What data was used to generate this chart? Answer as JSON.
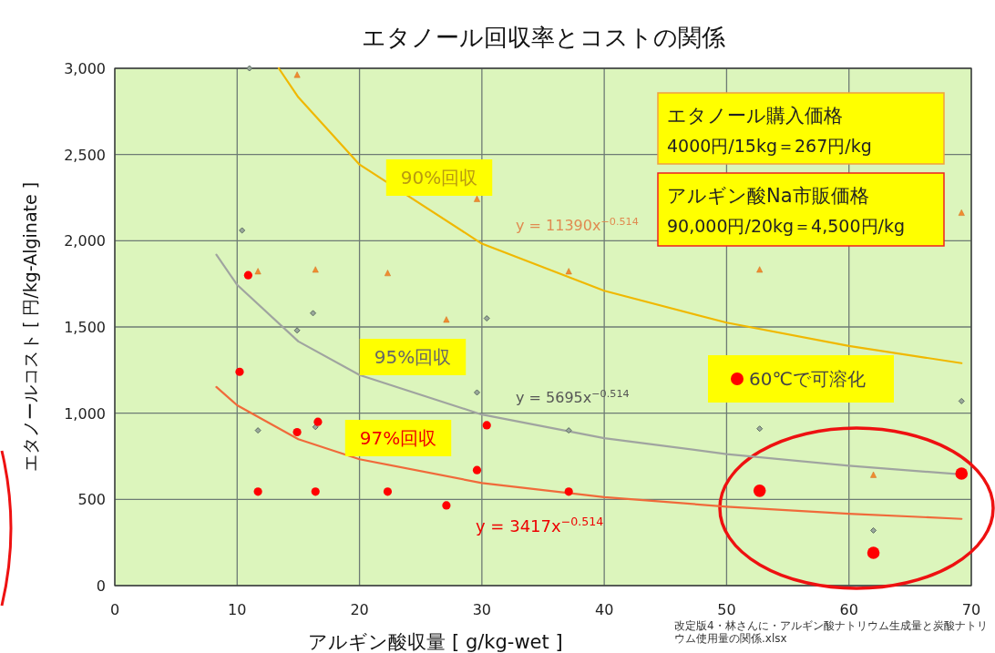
{
  "chart_data": {
    "type": "scatter",
    "title": "エタノール回収率とコストの関係",
    "xlabel": "アルギン酸収量 [ g/kg-wet ]",
    "ylabel": "エタノールコスト [ 円/kg-Alginate ]",
    "xlim": [
      0,
      70
    ],
    "xticks": [
      0,
      10,
      20,
      30,
      40,
      50,
      60,
      70
    ],
    "ylim": [
      0,
      3000
    ],
    "yticks": [
      0,
      500,
      {
        "value": 1000,
        "label": "1,000"
      },
      {
        "value": 1500,
        "label": "1,500"
      },
      {
        "value": 2000,
        "label": "2,000"
      },
      {
        "value": 2500,
        "label": "2,500"
      },
      {
        "value": 3000,
        "label": "3,000"
      }
    ],
    "grid": true,
    "legend": "right",
    "series": [
      {
        "type": "scatter",
        "marker": "triangle",
        "color": "#f08c30",
        "x": [
          14.9,
          11.7,
          16.4,
          22.3,
          27.1,
          29.6,
          37.1,
          52.7,
          62.0,
          69.2
        ],
        "values": [
          2960,
          1820,
          1830,
          1810,
          1540,
          2240,
          1820,
          1830,
          640,
          2160
        ]
      },
      {
        "type": "scatter",
        "marker": "diamond",
        "color": "#5a6a60",
        "x": [
          11.0,
          10.4,
          16.2,
          14.9,
          11.7,
          16.4,
          30.4,
          29.6,
          37.1,
          52.7,
          62.0,
          69.2
        ],
        "values": [
          3000,
          2060,
          1580,
          1480,
          900,
          920,
          1550,
          1120,
          900,
          910,
          320,
          1070
        ]
      },
      {
        "type": "scatter",
        "marker": "circle",
        "color": "#ff0000",
        "x": [
          10.9,
          10.2,
          11.7,
          14.9,
          16.6,
          16.4,
          22.3,
          27.1,
          29.6,
          30.4,
          37.1
        ],
        "values": [
          1800,
          1240,
          545,
          890,
          950,
          545,
          545,
          465,
          670,
          930,
          545
        ]
      },
      {
        "type": "scatter",
        "marker": "circle",
        "name": "60℃で可溶化",
        "color": "#ff0000",
        "x": [
          52.7,
          62.0,
          69.2
        ],
        "values": [
          550,
          190,
          650
        ]
      },
      {
        "type": "line",
        "marker": "none",
        "color": "#f0b800",
        "x": [
          13.4,
          15,
          20,
          30,
          40,
          50,
          60,
          69.2
        ],
        "values": [
          3000,
          2832,
          2442,
          1983,
          1710,
          1525,
          1390,
          1290
        ]
      },
      {
        "type": "line",
        "marker": "none",
        "color": "#a0a4a0",
        "x": [
          8.3,
          10,
          15,
          20,
          30,
          40,
          50,
          60,
          69.2
        ],
        "values": [
          1919,
          1744,
          1416,
          1221,
          992,
          855,
          763,
          695,
          645
        ]
      },
      {
        "type": "line",
        "marker": "none",
        "color": "#f06a3a",
        "x": [
          8.3,
          10,
          15,
          20,
          30,
          40,
          50,
          60,
          69.2
        ],
        "values": [
          1152,
          1046,
          849,
          733,
          595,
          513,
          458,
          417,
          387
        ]
      }
    ],
    "annotations": [
      "90%回収",
      "95%回収",
      "97%回収",
      "y = 11390x$^{−0.514}$",
      "y = 5695x$^{−0.514}$",
      "y = 3417x$^{−0.514}$",
      "エタノール購入価格\n 4000円/15kg＝267円/kg",
      "アルギン酸Na市販価格\n90,000円/20kg＝4,500円/kg",
      "改定版4・林さんに・アルギン酸ナトリウム生成量と炭酸ナトリウム使用量の関係.xlsx"
    ]
  }
}
